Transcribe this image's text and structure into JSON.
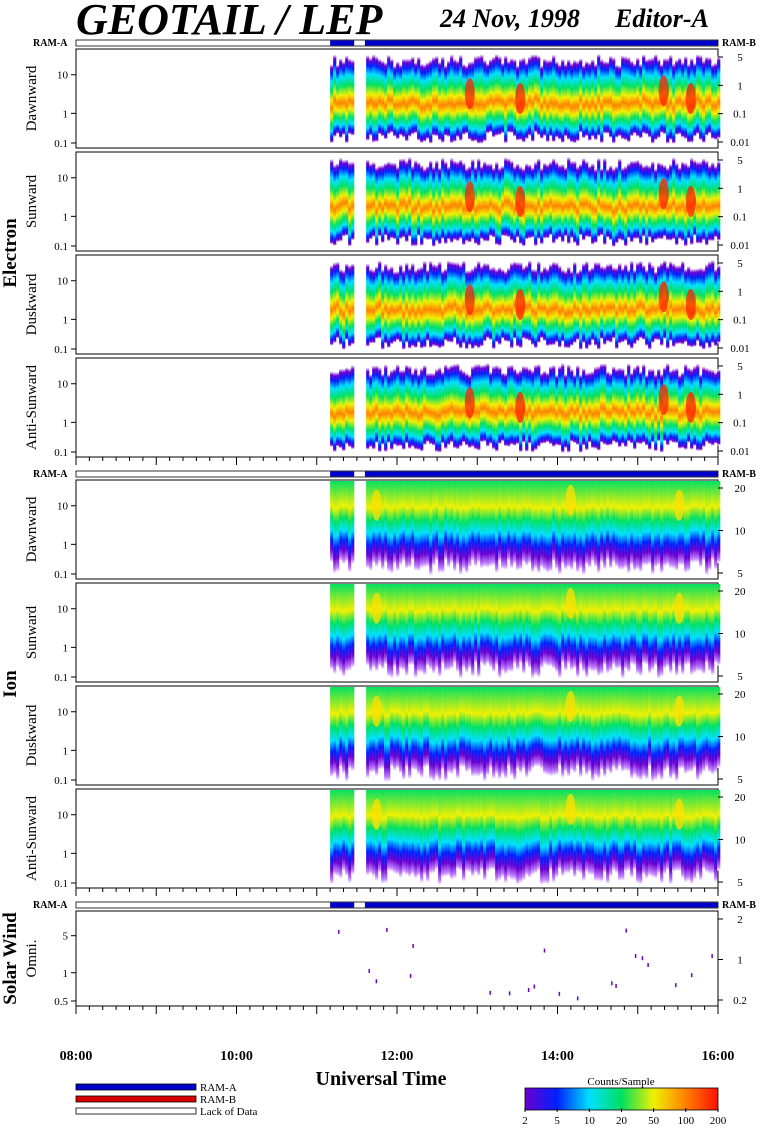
{
  "header": {
    "title": "GEOTAIL / LEP",
    "date": "24 Nov, 1998",
    "editor": "Editor-A"
  },
  "chart_data": {
    "type": "heatmap",
    "title": "GEOTAIL / LEP",
    "xlabel": "Universal Time",
    "x_range": [
      "08:00",
      "16:00"
    ],
    "x_ticks": [
      "08:00",
      "10:00",
      "12:00",
      "14:00",
      "16:00"
    ],
    "data_start": "11:10",
    "data_gap": [
      "11:28",
      "11:36"
    ],
    "ram_a_label": "RAM-A",
    "ram_b_label": "RAM-B",
    "groups": [
      {
        "name": "Electron",
        "panels": [
          {
            "name": "Dawnward",
            "left_ticks": [
              "0.1",
              "1",
              "10"
            ],
            "right_ticks": [
              "5",
              "1",
              "0.1",
              "0.01"
            ]
          },
          {
            "name": "Sunward",
            "left_ticks": [
              "0.1",
              "1",
              "10"
            ],
            "right_ticks": [
              "5",
              "1",
              "0.1",
              "0.01"
            ]
          },
          {
            "name": "Duskward",
            "left_ticks": [
              "0.1",
              "1",
              "10"
            ],
            "right_ticks": [
              "5",
              "1",
              "0.1",
              "0.01"
            ]
          },
          {
            "name": "Anti-Sunward",
            "left_ticks": [
              "0.1",
              "1",
              "10"
            ],
            "right_ticks": [
              "5",
              "1",
              "0.1",
              "0.01"
            ]
          }
        ]
      },
      {
        "name": "Ion",
        "panels": [
          {
            "name": "Dawnward",
            "left_ticks": [
              "0.1",
              "1",
              "10"
            ],
            "right_ticks": [
              "20",
              "10",
              "5"
            ]
          },
          {
            "name": "Sunward",
            "left_ticks": [
              "0.1",
              "1",
              "10"
            ],
            "right_ticks": [
              "20",
              "10",
              "5"
            ]
          },
          {
            "name": "Duskward",
            "left_ticks": [
              "0.1",
              "1",
              "10"
            ],
            "right_ticks": [
              "20",
              "10",
              "5"
            ]
          },
          {
            "name": "Anti-Sunward",
            "left_ticks": [
              "0.1",
              "1",
              "10"
            ],
            "right_ticks": [
              "20",
              "10",
              "5"
            ]
          }
        ]
      },
      {
        "name": "Solar Wind",
        "panels": [
          {
            "name": "Omni.",
            "left_ticks": [
              "0.5",
              "1",
              "5"
            ],
            "right_ticks": [
              "2",
              "1",
              "0.2"
            ]
          }
        ]
      }
    ],
    "legend": {
      "items": [
        {
          "label": "RAM-A",
          "color": "#0000cc"
        },
        {
          "label": "RAM-B",
          "color": "#dd0000"
        },
        {
          "label": "Lack of Data",
          "color": "#ffffff"
        }
      ]
    },
    "colorbar": {
      "title": "Counts/Sample",
      "ticks": [
        "2",
        "5",
        "10",
        "20",
        "50",
        "100",
        "200"
      ],
      "colors": [
        "#6a00d0",
        "#0020ff",
        "#00e0ff",
        "#00e060",
        "#f0f000",
        "#ff8000",
        "#ff1000"
      ]
    }
  }
}
